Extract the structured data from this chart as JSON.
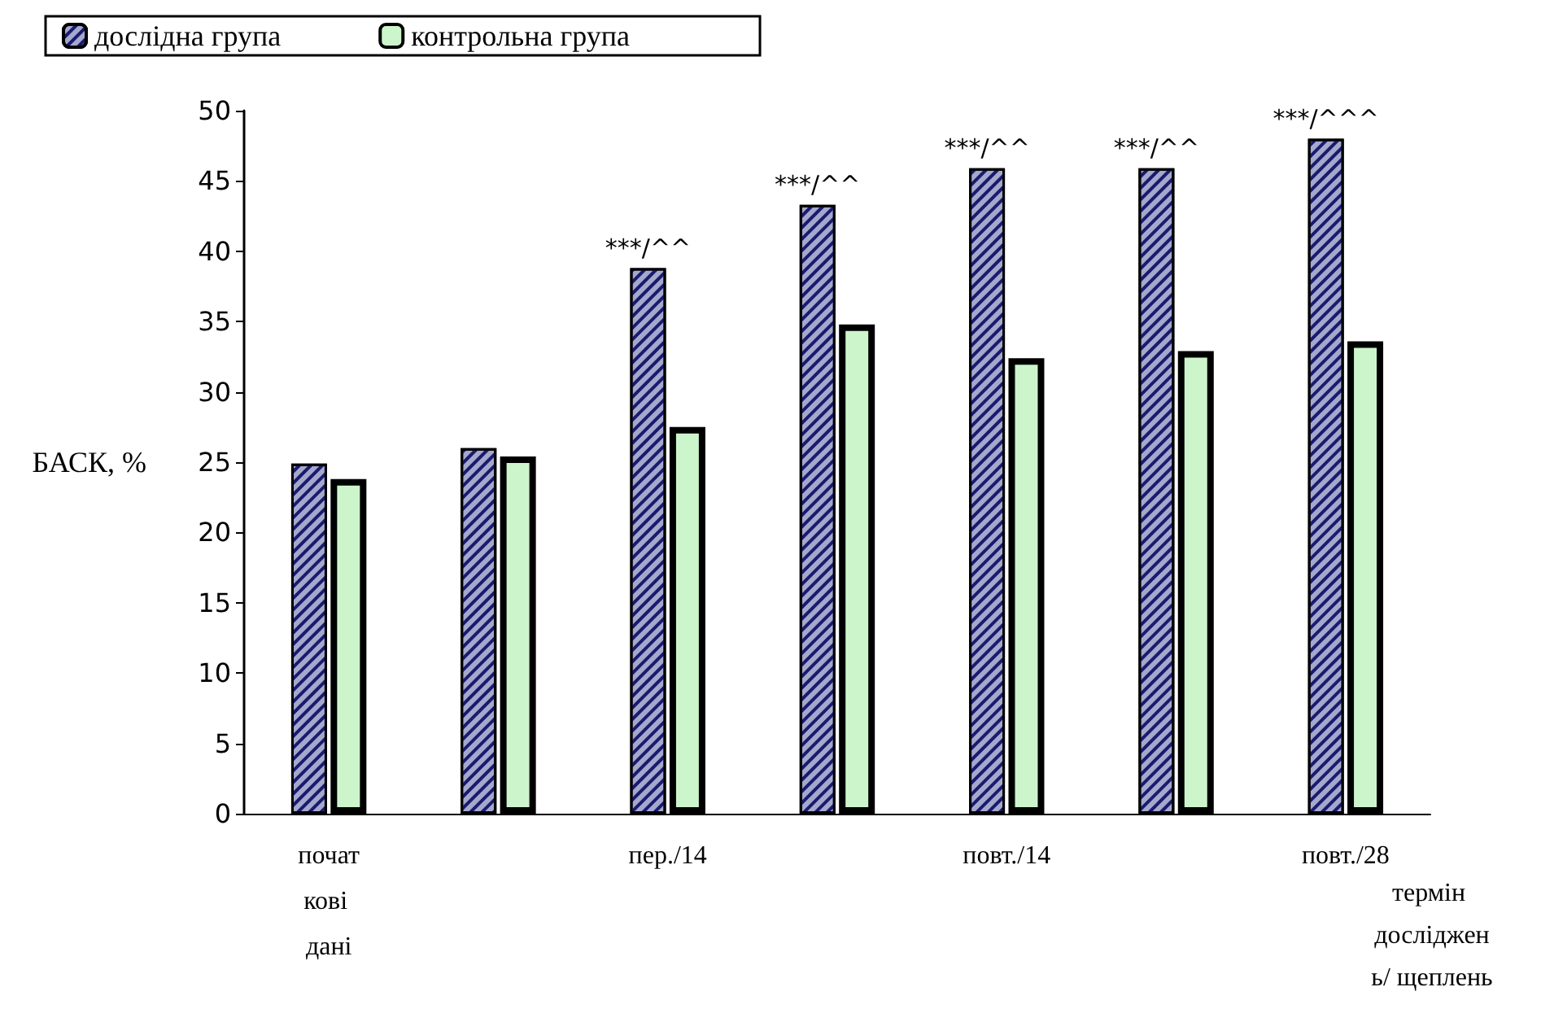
{
  "chart_data": {
    "type": "bar",
    "xlabel": "термін досліджень/ щеплень",
    "ylabel": "БАСК, %",
    "categories": [
      "початкові дані",
      null,
      "пер./14",
      null,
      "повт./14",
      null,
      "повт./28"
    ],
    "series": [
      {
        "name": "дослідна група",
        "color": "#a4a8cc",
        "values": [
          24.9,
          26.0,
          38.8,
          43.3,
          45.9,
          45.9,
          48.0
        ],
        "value_labels": [
          null,
          null,
          "***/^^",
          "***/^^",
          "***/^^",
          "***/^^",
          "***/^^^"
        ]
      },
      {
        "name": "контрольна група",
        "color": "#ccf5cc",
        "values": [
          23.8,
          25.4,
          27.5,
          34.8,
          32.4,
          32.9,
          33.6
        ]
      }
    ],
    "ylim": [
      0,
      50
    ],
    "yticks": [
      0,
      5,
      10,
      15,
      20,
      25,
      30,
      35,
      40,
      45,
      50
    ],
    "grid": false,
    "legend": "top"
  }
}
